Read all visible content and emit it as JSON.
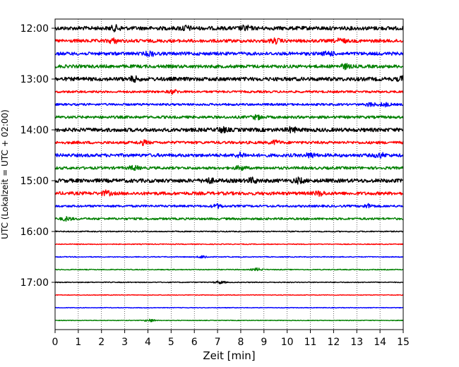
{
  "chart_data": {
    "type": "line",
    "title": "",
    "xlabel": "Zeit  [min]",
    "ylabel": "UTC (Lokalzeit = UTC + 02:00)",
    "xlim": [
      0,
      15
    ],
    "x_ticks": [
      0,
      1,
      2,
      3,
      4,
      5,
      6,
      7,
      8,
      9,
      10,
      11,
      12,
      13,
      14,
      15
    ],
    "y_tick_labels": [
      "12:00",
      "13:00",
      "14:00",
      "15:00",
      "16:00",
      "17:00"
    ],
    "grid": {
      "x": true,
      "y": false,
      "style": "dotted"
    },
    "series_colors": [
      "#000000",
      "#ff0000",
      "#0000ff",
      "#008000"
    ],
    "series": [
      {
        "start": "12:00",
        "amplitude": 3.5,
        "bursts": [
          2.6,
          5.6,
          8.2
        ]
      },
      {
        "start": "12:15",
        "amplitude": 3.0,
        "bursts": [
          2.5,
          9.5,
          12.3
        ]
      },
      {
        "start": "12:30",
        "amplitude": 3.0,
        "bursts": [
          4.1,
          11.8
        ]
      },
      {
        "start": "12:45",
        "amplitude": 3.0,
        "bursts": [
          12.5
        ]
      },
      {
        "start": "13:00",
        "amplitude": 3.5,
        "bursts": [
          3.4,
          15.0
        ]
      },
      {
        "start": "13:15",
        "amplitude": 2.0,
        "bursts": [
          5.1
        ]
      },
      {
        "start": "13:30",
        "amplitude": 2.0,
        "bursts": [
          13.6,
          14.2
        ]
      },
      {
        "start": "13:45",
        "amplitude": 2.5,
        "bursts": [
          8.7
        ]
      },
      {
        "start": "14:00",
        "amplitude": 3.5,
        "bursts": [
          7.2,
          10.2
        ]
      },
      {
        "start": "14:15",
        "amplitude": 2.5,
        "bursts": [
          3.8,
          9.5
        ]
      },
      {
        "start": "14:30",
        "amplitude": 3.0,
        "bursts": [
          8.0,
          11.0,
          14.0
        ]
      },
      {
        "start": "14:45",
        "amplitude": 2.5,
        "bursts": [
          3.4,
          8.0
        ]
      },
      {
        "start": "15:00",
        "amplitude": 3.5,
        "bursts": [
          6.6,
          8.5,
          10.5
        ]
      },
      {
        "start": "15:15",
        "amplitude": 3.0,
        "bursts": [
          2.2,
          11.4
        ]
      },
      {
        "start": "15:30",
        "amplitude": 2.0,
        "bursts": [
          7.0,
          13.5
        ]
      },
      {
        "start": "15:45",
        "amplitude": 2.0,
        "bursts": [
          0.5
        ]
      },
      {
        "start": "16:00",
        "amplitude": 1.0,
        "bursts": []
      },
      {
        "start": "16:15",
        "amplitude": 0.8,
        "bursts": []
      },
      {
        "start": "16:30",
        "amplitude": 0.8,
        "bursts": [
          6.4
        ]
      },
      {
        "start": "16:45",
        "amplitude": 0.8,
        "bursts": [
          8.7
        ]
      },
      {
        "start": "17:00",
        "amplitude": 0.8,
        "bursts": [
          7.1
        ]
      },
      {
        "start": "17:15",
        "amplitude": 0.6,
        "bursts": []
      },
      {
        "start": "17:30",
        "amplitude": 0.6,
        "bursts": []
      },
      {
        "start": "17:45",
        "amplitude": 0.6,
        "bursts": [
          4.1
        ]
      }
    ]
  }
}
